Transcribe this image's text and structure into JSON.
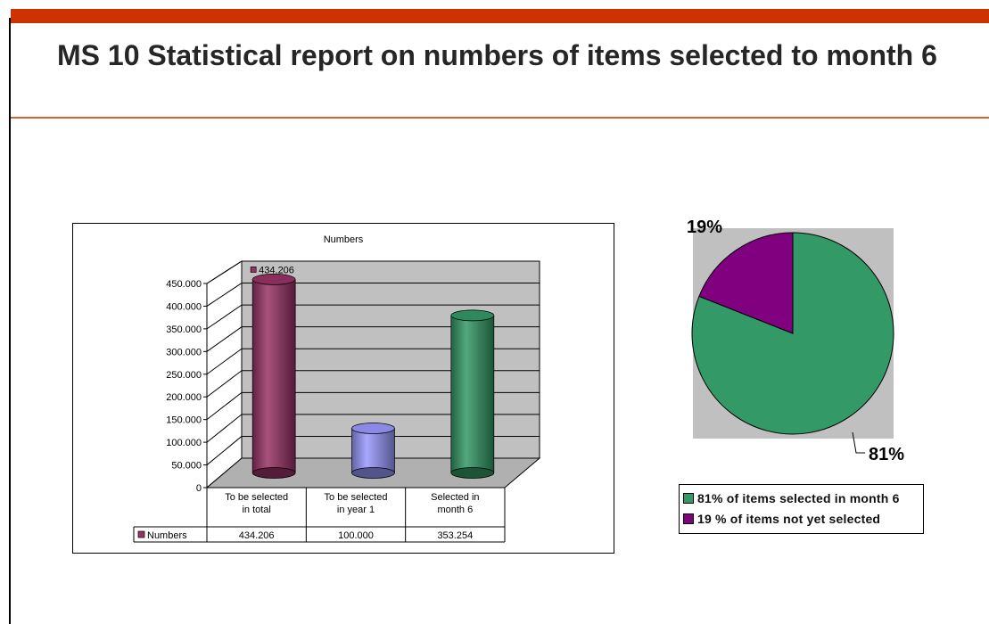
{
  "slide": {
    "title": "MS 10 Statistical report on numbers of  items selected to month 6",
    "accent_color": "#cc3300",
    "rule_color": "#d5603a"
  },
  "chart_data": [
    {
      "type": "bar",
      "style": "3d-cylinder",
      "title": "Numbers",
      "categories": [
        "To be selected in total",
        "To be selected in year 1",
        "Selected in month 6"
      ],
      "series": [
        {
          "name": "Numbers",
          "values": [
            434206,
            100000,
            353254
          ]
        }
      ],
      "bar_colors": [
        "#993366",
        "#9999ff",
        "#339966"
      ],
      "legend_swatch_color": "#993366",
      "data_table": {
        "row_label": "Numbers",
        "cells": [
          "434.206",
          "100.000",
          "353.254"
        ]
      },
      "data_labels": [
        "434.206"
      ],
      "y_ticks": [
        "0",
        "50.000",
        "100.000",
        "150.000",
        "200.000",
        "250.000",
        "300.000",
        "350.000",
        "400.000",
        "450.000"
      ],
      "ylim": [
        0,
        450000
      ],
      "grid": true,
      "wall_color": "#c0c0c0"
    },
    {
      "type": "pie",
      "slices": [
        {
          "label": "81%",
          "value": 81,
          "color": "#339966"
        },
        {
          "label": "19%",
          "value": 19,
          "color": "#800080"
        }
      ],
      "legend": [
        "81% of items selected in month 6",
        "19 % of items not yet selected"
      ],
      "legend_placement": "bottom",
      "background_color": "#c0c0c0"
    }
  ]
}
